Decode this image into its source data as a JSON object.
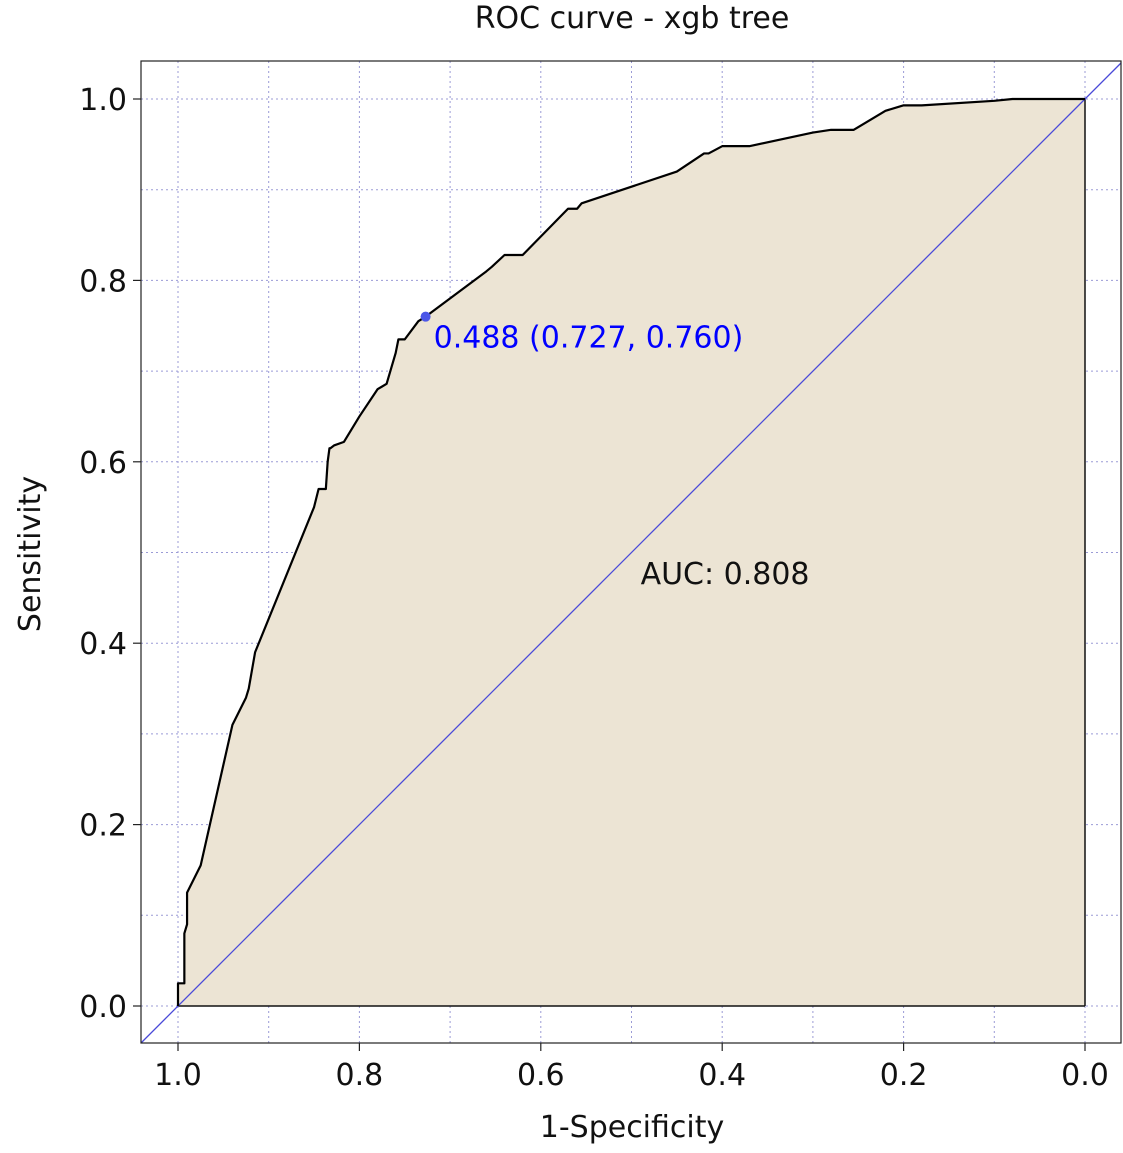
{
  "chart_data": {
    "type": "line",
    "title": "ROC curve - xgb tree",
    "xlabel": "1-Specificity",
    "ylabel": "Sensitivity",
    "x_axis_reversed": true,
    "xlim": [
      1.0,
      0.0
    ],
    "ylim": [
      0.0,
      1.0
    ],
    "x_ticks": [
      "1.0",
      "0.8",
      "0.6",
      "0.4",
      "0.2",
      "0.0"
    ],
    "y_ticks": [
      "0.0",
      "0.2",
      "0.4",
      "0.6",
      "0.8",
      "1.0"
    ],
    "grid": true,
    "series": [
      {
        "style": "step-line",
        "fill": "area-under-curve",
        "x": [
          1.0,
          1.0,
          0.993,
          0.993,
          0.99,
          0.99,
          0.975,
          0.94,
          0.925,
          0.922,
          0.915,
          0.85,
          0.845,
          0.837,
          0.835,
          0.833,
          0.832,
          0.828,
          0.817,
          0.8,
          0.78,
          0.77,
          0.76,
          0.757,
          0.75,
          0.735,
          0.727,
          0.66,
          0.654,
          0.64,
          0.62,
          0.57,
          0.56,
          0.555,
          0.45,
          0.42,
          0.415,
          0.4,
          0.37,
          0.3,
          0.28,
          0.255,
          0.22,
          0.2,
          0.18,
          0.1,
          0.08,
          0.0
        ],
        "y": [
          0.0,
          0.025,
          0.025,
          0.08,
          0.09,
          0.125,
          0.155,
          0.31,
          0.34,
          0.35,
          0.39,
          0.55,
          0.57,
          0.57,
          0.6,
          0.615,
          0.615,
          0.618,
          0.622,
          0.65,
          0.68,
          0.686,
          0.72,
          0.735,
          0.735,
          0.755,
          0.76,
          0.81,
          0.815,
          0.828,
          0.828,
          0.879,
          0.879,
          0.885,
          0.92,
          0.94,
          0.94,
          0.948,
          0.948,
          0.963,
          0.966,
          0.966,
          0.987,
          0.993,
          0.993,
          0.998,
          1.0,
          1.0
        ]
      },
      {
        "style": "diagonal-reference",
        "x": [
          1.0,
          0.0
        ],
        "y": [
          0.0,
          1.0
        ]
      }
    ],
    "highlight_point": {
      "x": 0.727,
      "y": 0.76,
      "label": "0.488 (0.727, 0.760)",
      "color": "#0000ff"
    },
    "annotations": [
      {
        "text": "AUC: 0.808",
        "x": 0.49,
        "y": 0.465
      }
    ],
    "colors": {
      "fill": "#ece4d4",
      "curve": "#000000",
      "diagonal": "#4a4ad8",
      "grid": "#9b9bd6",
      "point": "#4b56e8",
      "point_label": "#0000ff"
    }
  }
}
